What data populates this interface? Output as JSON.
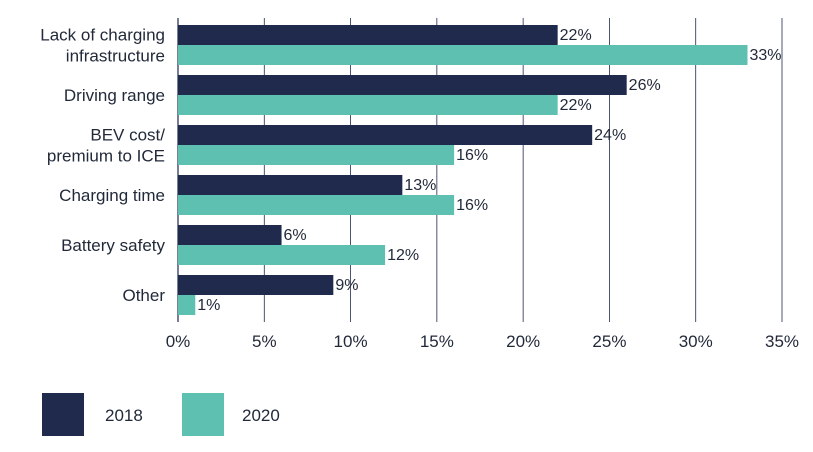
{
  "chart_data": {
    "type": "bar",
    "orientation": "horizontal",
    "categories": [
      [
        "Lack of charging",
        "infrastructure"
      ],
      [
        "Driving range"
      ],
      [
        "BEV cost/",
        "premium to ICE"
      ],
      [
        "Charging time"
      ],
      [
        "Battery safety"
      ],
      [
        "Other"
      ]
    ],
    "series": [
      {
        "name": "2018",
        "color": "#1f2a4d",
        "values": [
          22,
          26,
          24,
          13,
          6,
          9
        ],
        "labels": [
          "22%",
          "26%",
          "24%",
          "13%",
          "6%",
          "9%"
        ]
      },
      {
        "name": "2020",
        "color": "#5ec0b1",
        "values": [
          33,
          22,
          16,
          16,
          12,
          1
        ],
        "labels": [
          "33%",
          "22%",
          "16%",
          "16%",
          "12%",
          "1%"
        ]
      }
    ],
    "xlim": [
      0,
      35
    ],
    "x_ticks": [
      0,
      5,
      10,
      15,
      20,
      25,
      30,
      35
    ],
    "x_tick_labels": [
      "0%",
      "5%",
      "10%",
      "15%",
      "20%",
      "25%",
      "30%",
      "35%"
    ],
    "grid": "vertical",
    "legend_position": "bottom-left",
    "title": "",
    "xlabel": "",
    "ylabel": ""
  }
}
